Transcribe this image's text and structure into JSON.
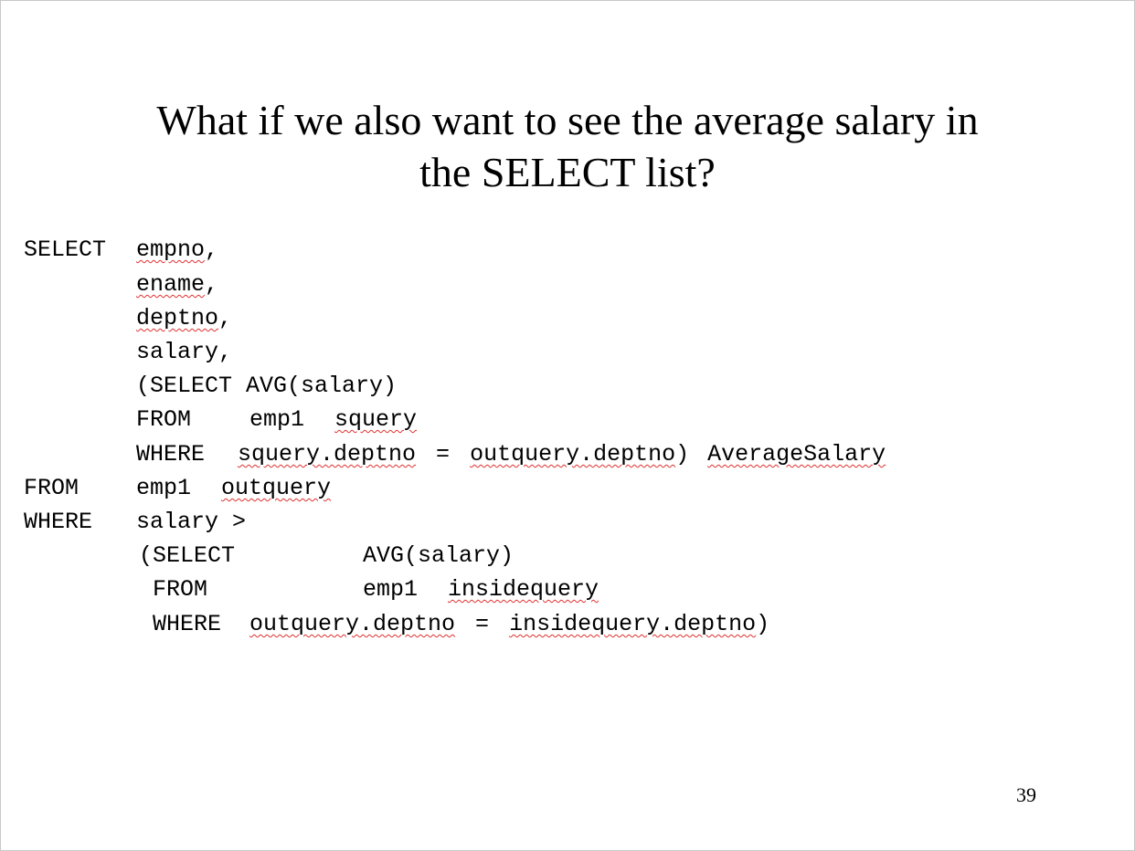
{
  "slide": {
    "title_line1": "What if we also want to see the average salary in",
    "title_line2": "the SELECT list?",
    "page_number": "39"
  },
  "code": {
    "l1": {
      "kw": "SELECT",
      "a": "empno",
      "b": ","
    },
    "l2": {
      "a": "ename",
      "b": ","
    },
    "l3": {
      "a": "deptno",
      "b": ","
    },
    "l4": {
      "a": "salary,"
    },
    "l5": {
      "a": "(SELECT AVG(salary)"
    },
    "l6": {
      "kw": "FROM",
      "a": "emp1",
      "b": "squery"
    },
    "l7": {
      "kw": "WHERE",
      "a": "squery.deptno",
      "b": "=",
      "c": "outquery.deptno",
      "d": ")",
      "e": "AverageSalary"
    },
    "l8": {
      "kw": "FROM",
      "a": "emp1",
      "b": "outquery"
    },
    "l9": {
      "kw": "WHERE",
      "a": "salary >"
    },
    "l10": {
      "kw": "(SELECT",
      "a": "AVG(salary)"
    },
    "l11": {
      "kw": "FROM",
      "a": "emp1",
      "b": "insidequery"
    },
    "l12": {
      "kw": "WHERE",
      "a": "outquery.deptno",
      "b": "=",
      "c": "insidequery.deptno",
      "d": ")"
    }
  }
}
